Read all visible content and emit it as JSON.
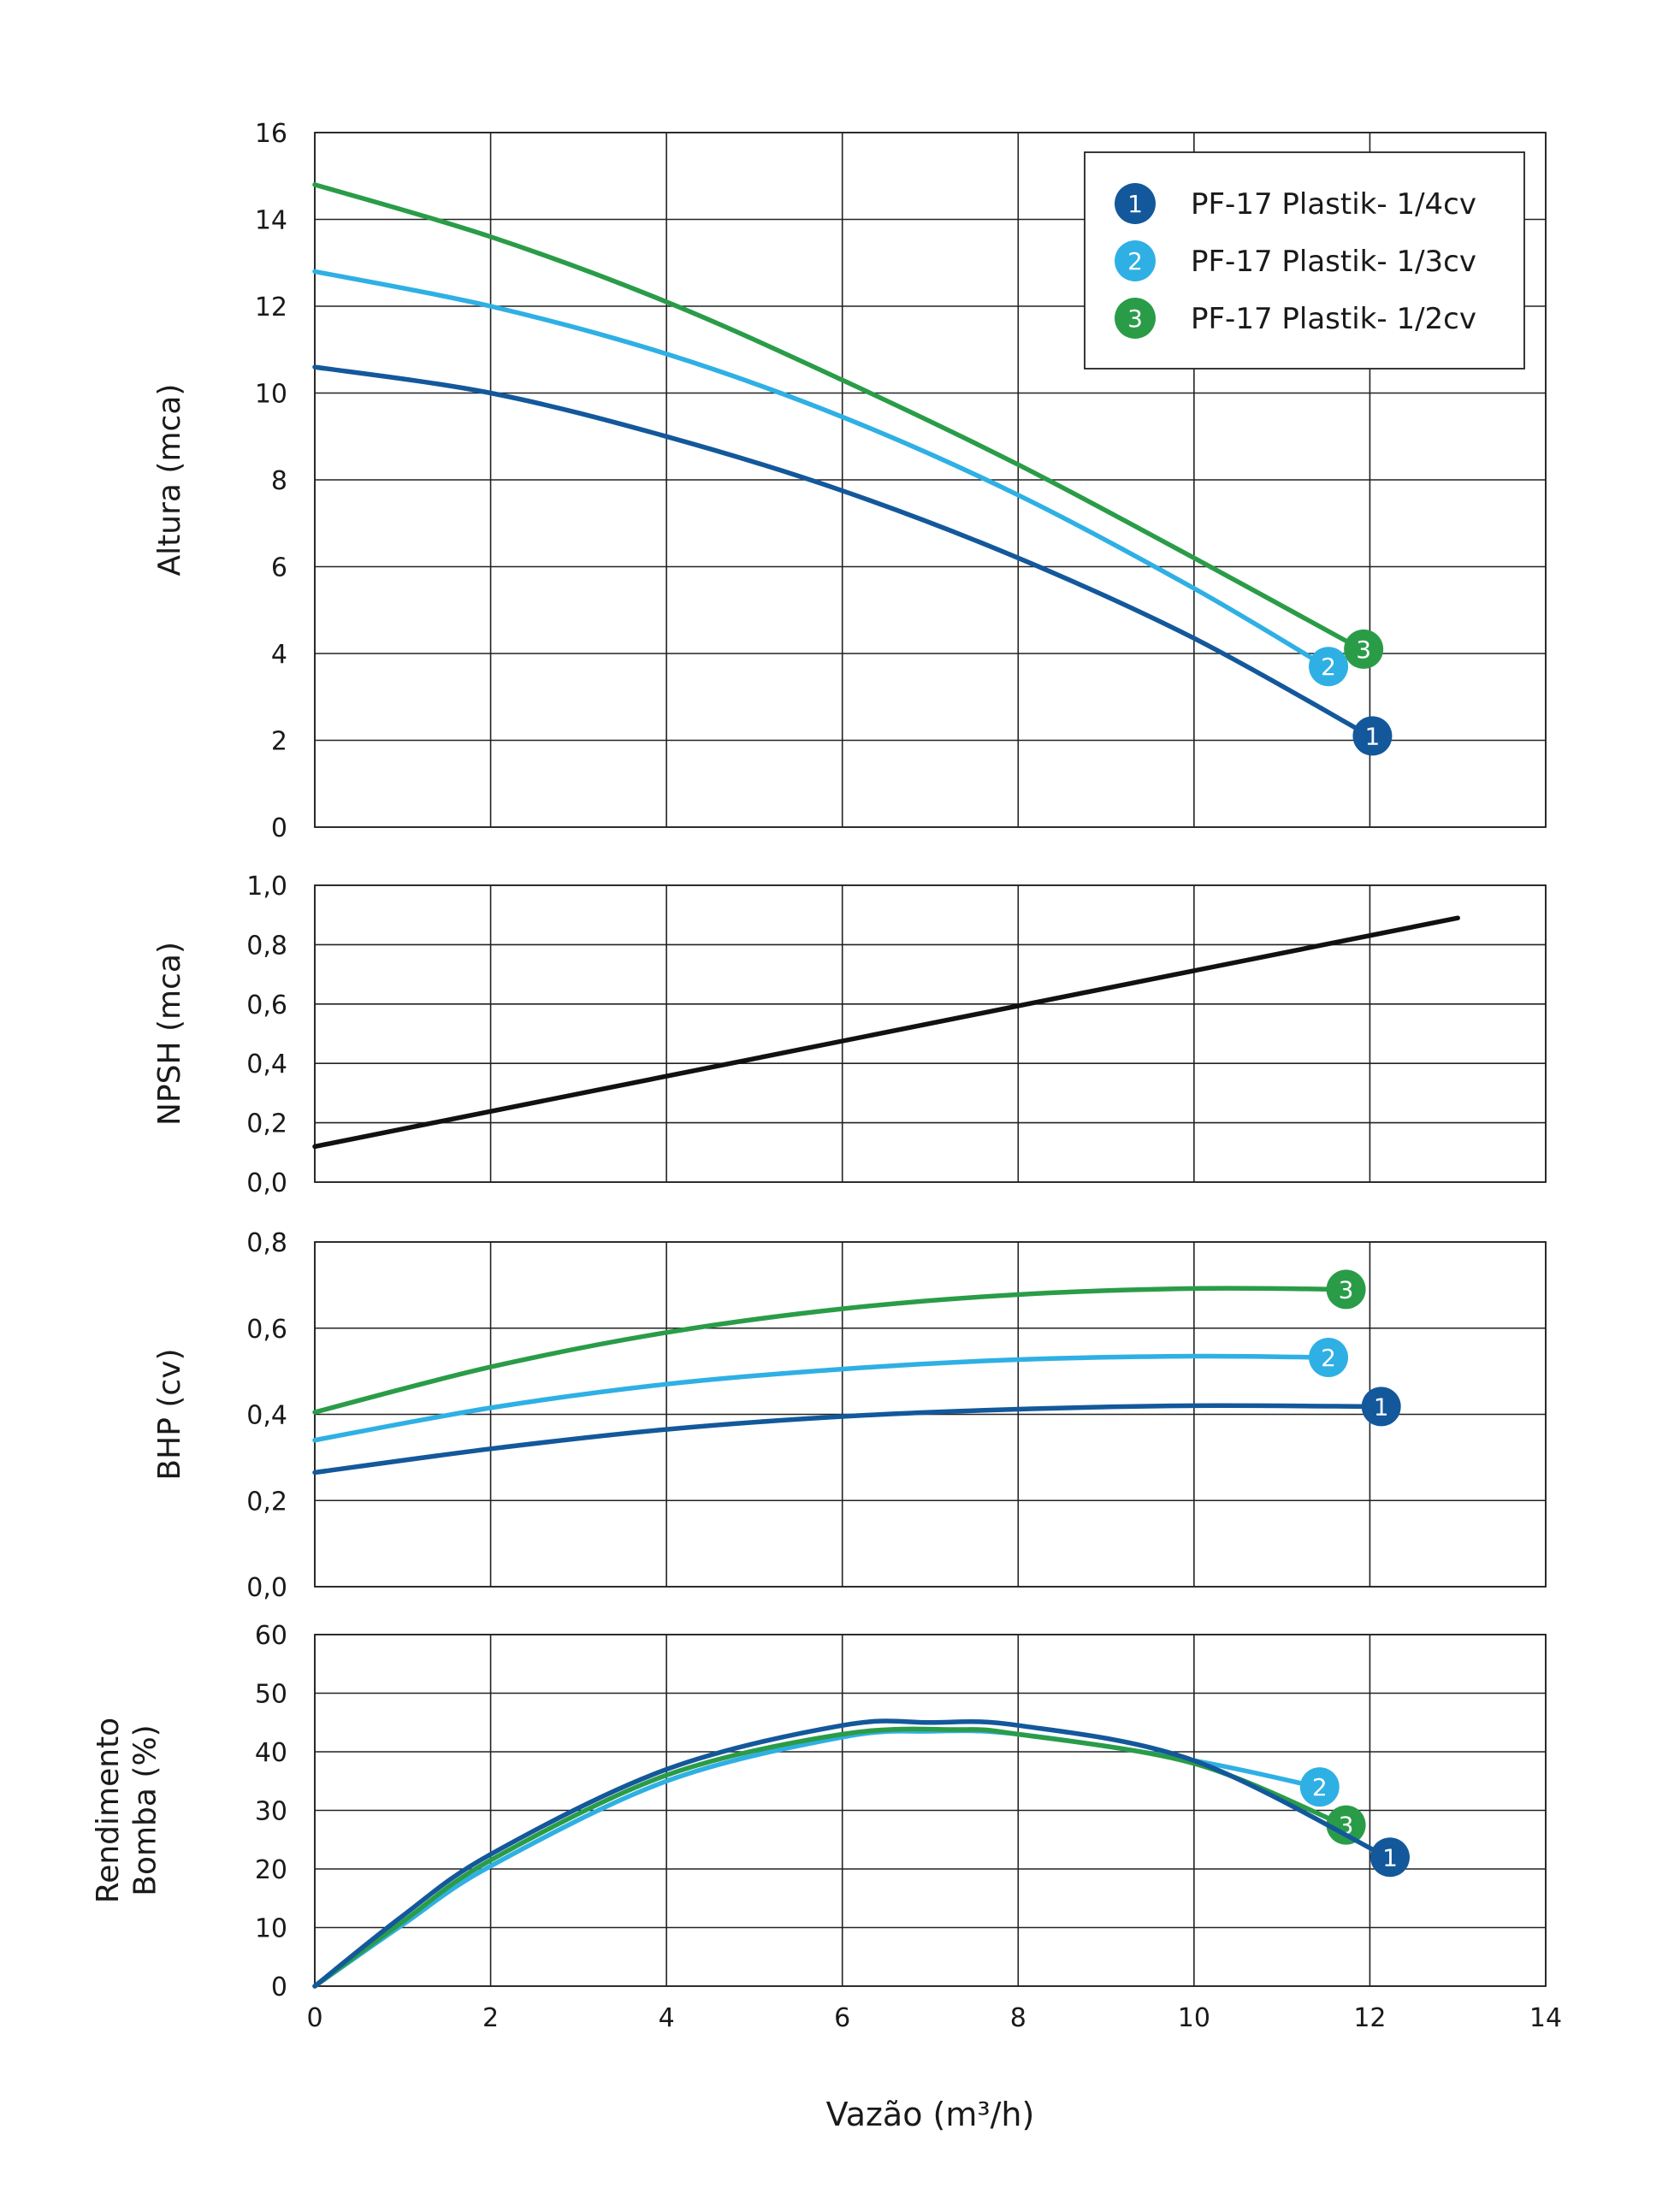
{
  "colors": {
    "series1": "#13589b",
    "series2": "#2fb0e4",
    "series3": "#2a9c48",
    "npsh": "#111111",
    "grid": "#222222"
  },
  "legend": [
    {
      "marker": "1",
      "label": "PF-17 Plastik- 1/4cv",
      "color": "#13589b"
    },
    {
      "marker": "2",
      "label": "PF-17 Plastik- 1/3cv",
      "color": "#2fb0e4"
    },
    {
      "marker": "3",
      "label": "PF-17 Plastik- 1/2cv",
      "color": "#2a9c48"
    }
  ],
  "xaxis": {
    "label": "Vazão (m³/h)",
    "ticks": [
      "0",
      "2",
      "4",
      "6",
      "8",
      "10",
      "12",
      "14"
    ],
    "range": [
      0,
      14
    ]
  },
  "chart_data": [
    {
      "type": "line",
      "id": "altura",
      "ylabel": "Altura (mca)",
      "ylim": [
        0,
        16
      ],
      "yticks": [
        "0",
        "2",
        "4",
        "6",
        "8",
        "10",
        "12",
        "14",
        "16"
      ],
      "grid": true,
      "legend_position": "top-right",
      "series": [
        {
          "name": "PF-17 Plastik- 1/4cv",
          "marker": "1",
          "x": [
            0,
            2,
            4,
            6,
            8,
            10,
            12
          ],
          "values": [
            10.6,
            10.0,
            9.0,
            7.75,
            6.2,
            4.35,
            2.1
          ]
        },
        {
          "name": "PF-17 Plastik- 1/3cv",
          "marker": "2",
          "x": [
            0,
            2,
            4,
            6,
            8,
            10,
            11.5
          ],
          "values": [
            12.8,
            12.0,
            10.9,
            9.45,
            7.65,
            5.5,
            3.7
          ]
        },
        {
          "name": "PF-17 Plastik- 1/2cv",
          "marker": "3",
          "x": [
            0,
            2,
            4,
            6,
            8,
            10,
            11.9
          ],
          "values": [
            14.8,
            13.6,
            12.1,
            10.3,
            8.35,
            6.2,
            4.1
          ]
        }
      ]
    },
    {
      "type": "line",
      "id": "npsh",
      "ylabel": "NPSH (mca)",
      "ylim": [
        0,
        1
      ],
      "yticks": [
        "0,0",
        "0,2",
        "0,4",
        "0,6",
        "0,8",
        "1,0"
      ],
      "grid": true,
      "series": [
        {
          "name": "NPSH",
          "x": [
            0,
            13
          ],
          "values": [
            0.12,
            0.89
          ]
        }
      ]
    },
    {
      "type": "line",
      "id": "bhp",
      "ylabel": "BHP (cv)",
      "ylim": [
        0,
        0.8
      ],
      "yticks": [
        "0,0",
        "0,2",
        "0,4",
        "0,6",
        "0,8"
      ],
      "grid": true,
      "series": [
        {
          "name": "PF-17 Plastik- 1/4cv",
          "marker": "1",
          "x": [
            0,
            2,
            4,
            6,
            8,
            10,
            12.1
          ],
          "values": [
            0.265,
            0.32,
            0.365,
            0.395,
            0.412,
            0.42,
            0.418
          ]
        },
        {
          "name": "PF-17 Plastik- 1/3cv",
          "marker": "2",
          "x": [
            0,
            2,
            4,
            6,
            8,
            10,
            11.5
          ],
          "values": [
            0.34,
            0.415,
            0.47,
            0.505,
            0.527,
            0.535,
            0.532
          ]
        },
        {
          "name": "PF-17 Plastik- 1/2cv",
          "marker": "3",
          "x": [
            0,
            2,
            4,
            6,
            8,
            10,
            11.7
          ],
          "values": [
            0.405,
            0.51,
            0.59,
            0.645,
            0.678,
            0.692,
            0.69
          ]
        }
      ]
    },
    {
      "type": "line",
      "id": "rendimento",
      "ylabel": [
        "Rendimento",
        "Bomba (%)"
      ],
      "ylim": [
        0,
        60
      ],
      "yticks": [
        "0",
        "10",
        "20",
        "30",
        "40",
        "50",
        "60"
      ],
      "grid": true,
      "series": [
        {
          "name": "PF-17 Plastik- 1/3cv",
          "marker": "2",
          "x": [
            0,
            1,
            2,
            4,
            6,
            7,
            8,
            10,
            11.4
          ],
          "values": [
            0,
            10.5,
            20.5,
            35,
            42.5,
            43.5,
            43,
            38.5,
            34
          ]
        },
        {
          "name": "PF-17 Plastik- 1/2cv",
          "marker": "3",
          "x": [
            0,
            1,
            2,
            4,
            6,
            7.3,
            8,
            10,
            11.7
          ],
          "values": [
            0,
            11,
            21.5,
            36,
            43,
            43.8,
            43,
            38,
            27.5
          ]
        },
        {
          "name": "PF-17 Plastik- 1/4cv",
          "marker": "1",
          "x": [
            0,
            1,
            2,
            4,
            6,
            7,
            8,
            10,
            12.2
          ],
          "values": [
            0,
            12,
            22.5,
            37,
            44.5,
            45,
            44.5,
            38.5,
            22
          ]
        }
      ]
    }
  ]
}
